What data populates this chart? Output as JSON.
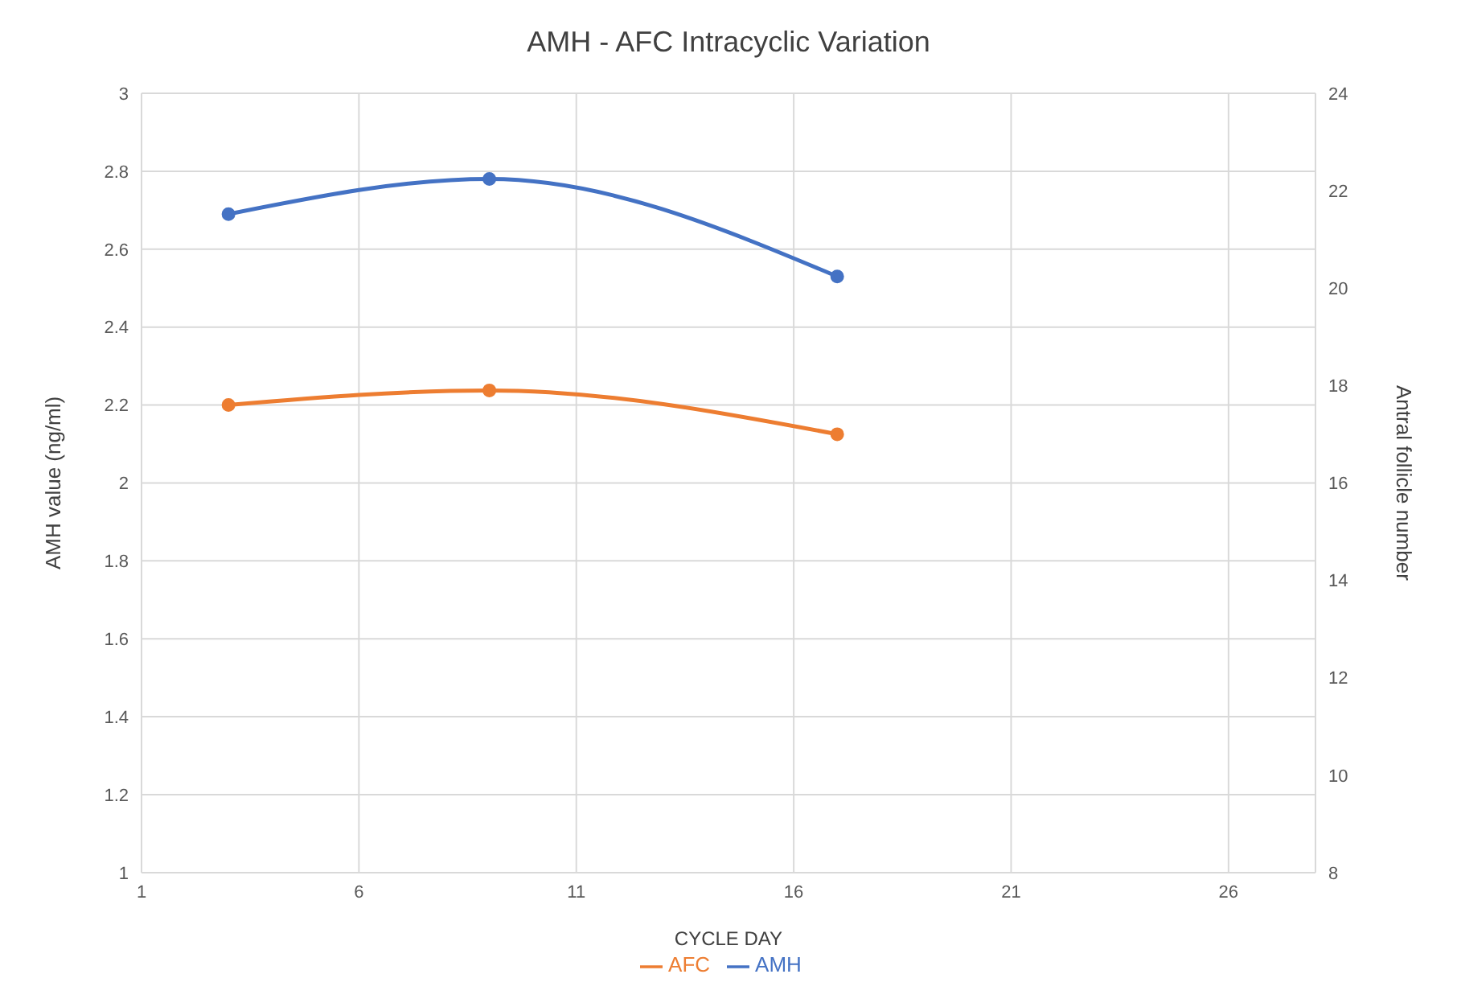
{
  "chart_data": {
    "type": "line",
    "title": "AMH - AFC Intracyclic Variation",
    "xlabel": "CYCLE DAY",
    "ylabel": "AMH value (ng/ml)",
    "y2label": "Antral follicle number",
    "x": [
      3,
      9,
      17
    ],
    "series": [
      {
        "name": "AMH",
        "color": "#4472c4",
        "values": [
          2.69,
          2.78,
          2.53
        ]
      },
      {
        "name": "AFC",
        "color": "#ed7d31",
        "values": [
          17.6,
          17.9,
          17.0
        ],
        "axis": "y2"
      }
    ],
    "xlim": [
      1,
      28
    ],
    "xticks": [
      1,
      6,
      11,
      16,
      21,
      26
    ],
    "ylim": [
      1,
      3
    ],
    "yticks": [
      1,
      1.2,
      1.4,
      1.6,
      1.8,
      2,
      2.2,
      2.4,
      2.6,
      2.8,
      3
    ],
    "y2lim": [
      8,
      24
    ],
    "y2ticks": [
      8,
      10,
      12,
      14,
      16,
      18,
      20,
      22,
      24
    ],
    "grid": true,
    "legend": "bottom",
    "marker": "circle",
    "line_style": "solid"
  }
}
